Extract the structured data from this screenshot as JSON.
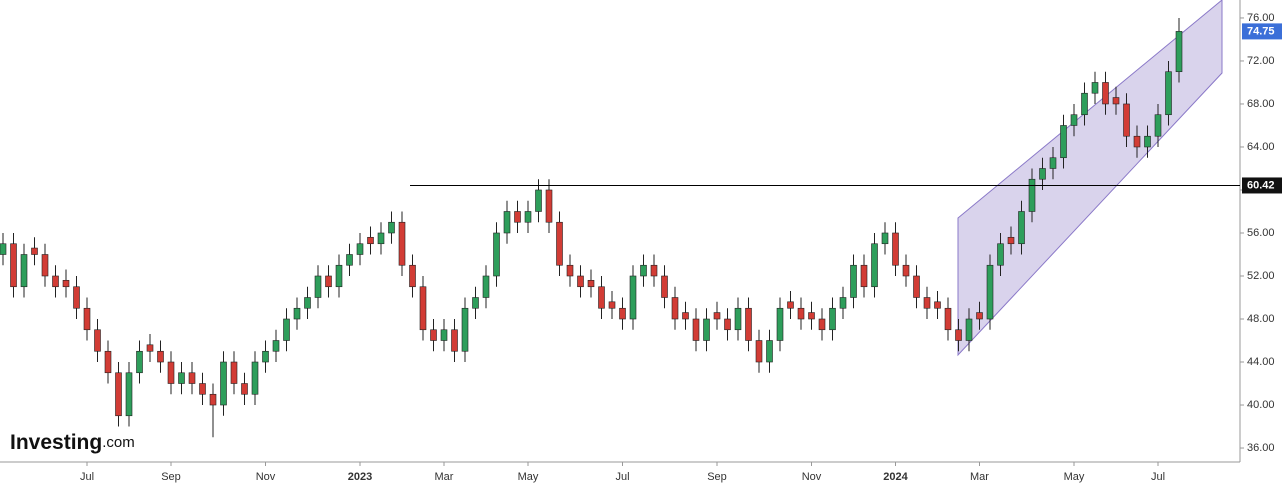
{
  "chart_data": {
    "type": "candlestick",
    "logo": [
      "Investing",
      ".com"
    ],
    "categories": [
      null,
      null,
      null,
      null,
      null,
      null,
      null,
      null,
      "Jul",
      null,
      null,
      null,
      null,
      null,
      null,
      null,
      "Sep",
      null,
      null,
      null,
      null,
      null,
      null,
      null,
      null,
      "Nov",
      null,
      null,
      null,
      null,
      null,
      null,
      null,
      null,
      "2023",
      null,
      null,
      null,
      null,
      null,
      null,
      null,
      "Mar",
      null,
      null,
      null,
      null,
      null,
      null,
      null,
      "May",
      null,
      null,
      null,
      null,
      null,
      null,
      null,
      null,
      "Jul",
      null,
      null,
      null,
      null,
      null,
      null,
      null,
      null,
      "Sep",
      null,
      null,
      null,
      null,
      null,
      null,
      null,
      null,
      "Nov",
      null,
      null,
      null,
      null,
      null,
      null,
      null,
      "2024",
      null,
      null,
      null,
      null,
      null,
      null,
      null,
      "Mar",
      null,
      null,
      null,
      null,
      null,
      null,
      null,
      null,
      "May",
      null,
      null,
      null,
      null,
      null,
      null,
      null,
      "Jul",
      null,
      null
    ],
    "open": [
      54,
      55,
      51,
      54.6,
      54,
      52,
      51.6,
      51,
      49,
      47,
      45,
      43,
      39,
      43,
      45.6,
      45,
      44,
      42,
      43,
      42,
      41,
      40,
      44,
      42,
      41,
      44,
      45,
      46,
      48,
      49,
      50,
      52,
      51,
      53,
      54,
      55.6,
      55,
      56,
      57,
      53,
      51,
      47,
      46,
      47,
      45,
      49,
      50,
      52,
      56,
      58,
      57,
      58,
      60,
      57,
      53,
      52,
      51.6,
      51,
      49.6,
      49,
      48,
      52,
      53,
      52,
      50,
      48.6,
      48,
      46,
      48.6,
      48,
      47,
      49,
      46,
      44,
      46,
      49.6,
      49,
      48.6,
      48,
      47,
      49,
      50,
      53,
      51,
      55,
      56,
      53,
      52,
      50,
      49.6,
      49,
      47,
      46,
      48.6,
      48,
      53,
      55.6,
      55,
      58,
      61,
      62,
      63,
      66,
      67,
      69,
      70,
      68.6,
      68,
      65,
      64,
      65,
      67,
      71
    ],
    "high": [
      56,
      56,
      55,
      55.6,
      55,
      53,
      52.6,
      52,
      50,
      48,
      46,
      44,
      44,
      46,
      46.6,
      46,
      45,
      44,
      44,
      43,
      42,
      45,
      45,
      43,
      45,
      46,
      47,
      49,
      50,
      51,
      53,
      53,
      54,
      55,
      56,
      56.6,
      57,
      58,
      58,
      54,
      52,
      48,
      48,
      48,
      50,
      51,
      53,
      57,
      59,
      59,
      59,
      61,
      61,
      58,
      54,
      53,
      52.6,
      52,
      50.6,
      50,
      53,
      54,
      54,
      53,
      51,
      49.6,
      49,
      49,
      49.6,
      49,
      50,
      50,
      47,
      47,
      50,
      50.6,
      50,
      49.6,
      49,
      50,
      51,
      54,
      54,
      56,
      57,
      57,
      54,
      53,
      51,
      50.6,
      50,
      48,
      49,
      49.6,
      54,
      56,
      56.6,
      59,
      62,
      63,
      64,
      67,
      68,
      70,
      71,
      71,
      69.6,
      69,
      66,
      66,
      68,
      72,
      76
    ],
    "low": [
      53,
      50,
      50,
      53,
      51,
      50,
      50,
      48,
      46,
      44,
      42,
      38,
      38,
      42,
      44,
      43,
      41,
      41,
      41,
      40,
      37,
      39,
      41,
      40,
      40,
      43,
      44,
      45,
      47,
      48,
      49,
      50,
      50,
      52,
      53,
      54,
      54,
      55,
      52,
      50,
      46,
      45,
      45,
      44,
      44,
      48,
      49,
      51,
      55,
      56,
      56,
      57,
      56,
      52,
      51,
      50,
      50,
      48,
      48,
      47,
      47,
      51,
      51,
      49,
      47,
      47,
      45,
      45,
      47,
      46,
      46,
      45,
      43,
      43,
      45,
      48,
      47,
      47,
      46,
      46,
      48,
      49,
      50,
      50,
      54,
      52,
      51,
      49,
      48,
      48,
      46,
      45,
      45,
      47,
      47,
      52,
      54,
      54,
      57,
      60,
      61,
      62,
      65,
      66,
      68,
      67,
      67,
      64,
      63,
      63,
      64,
      66,
      70
    ],
    "close": [
      55,
      51,
      54,
      54,
      52,
      51,
      51,
      49,
      47,
      45,
      43,
      39,
      43,
      45,
      45,
      44,
      42,
      43,
      42,
      41,
      40,
      44,
      42,
      41,
      44,
      45,
      46,
      48,
      49,
      50,
      52,
      51,
      53,
      54,
      55,
      55,
      56,
      57,
      53,
      51,
      47,
      46,
      47,
      45,
      49,
      50,
      52,
      56,
      58,
      57,
      58,
      60,
      57,
      53,
      52,
      51,
      51,
      49,
      49,
      48,
      52,
      53,
      52,
      50,
      48,
      48,
      46,
      48,
      48,
      47,
      49,
      46,
      44,
      46,
      49,
      49,
      48,
      48,
      47,
      49,
      50,
      53,
      51,
      55,
      56,
      53,
      52,
      50,
      49,
      49,
      47,
      46,
      48,
      48,
      53,
      55,
      55,
      58,
      61,
      62,
      63,
      66,
      67,
      69,
      70,
      68,
      68,
      65,
      64,
      65,
      67,
      71,
      74.75
    ],
    "up_color": "#2e9e5b",
    "down_color": "#d23c35",
    "hline": {
      "value": 60.42
    },
    "ylim": [
      34.7,
      77.67
    ],
    "yticks": [
      {
        "value": 36,
        "label": "36.00"
      },
      {
        "value": 40,
        "label": "40.00"
      },
      {
        "value": 44,
        "label": "44.00"
      },
      {
        "value": 48,
        "label": "48.00"
      },
      {
        "value": 52,
        "label": "52.00"
      },
      {
        "value": 56,
        "label": "56.00"
      },
      {
        "value": 60,
        "label": "60.00"
      },
      {
        "value": 64,
        "label": "64.00"
      },
      {
        "value": 68,
        "label": "68.00"
      },
      {
        "value": 72,
        "label": "72.00"
      },
      {
        "value": 76,
        "label": "76.00"
      }
    ]
  }
}
